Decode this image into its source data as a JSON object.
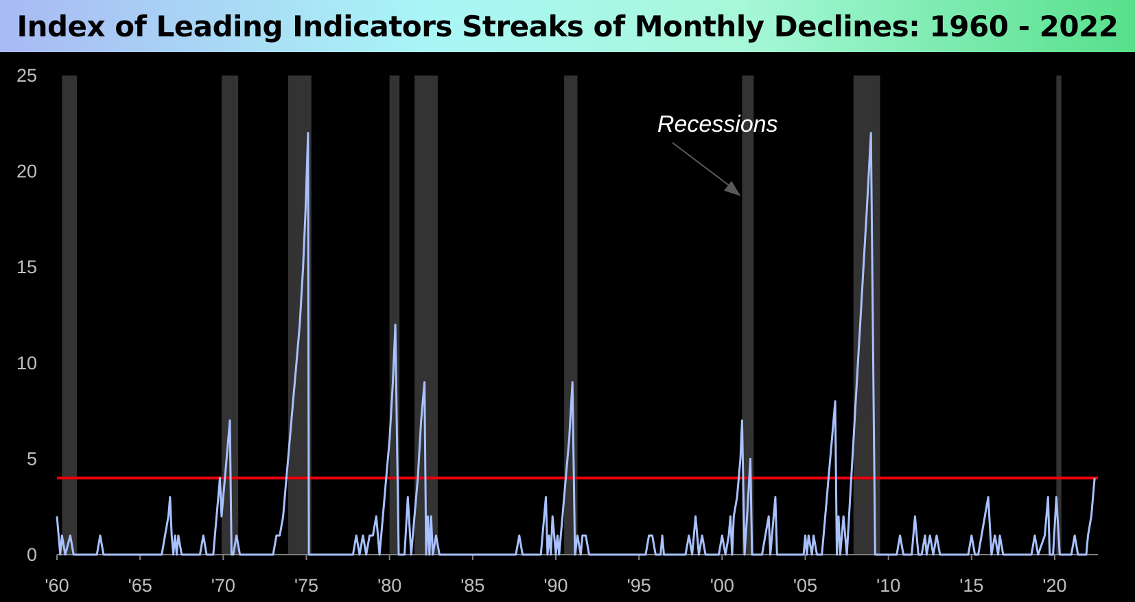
{
  "title": "Index of Leading Indicators Streaks of Monthly Declines: 1960 - 2022",
  "colors": {
    "background": "#000000",
    "series": "#a9c1ff",
    "threshold": "#e8000b",
    "recession_band": "#333333",
    "tick_text": "#bfbfbf"
  },
  "chart_data": {
    "type": "line",
    "title": "Index of Leading Indicators Streaks of Monthly Declines: 1960 - 2022",
    "xlabel": "",
    "ylabel": "",
    "xlim": [
      1960,
      2022.6
    ],
    "ylim": [
      0,
      25
    ],
    "x_ticks": [
      1960,
      1965,
      1970,
      1975,
      1980,
      1985,
      1990,
      1995,
      2000,
      2005,
      2010,
      2015,
      2020
    ],
    "x_tick_labels": [
      "'60",
      "'65",
      "'70",
      "'75",
      "'80",
      "'85",
      "'90",
      "'95",
      "'00",
      "'05",
      "'10",
      "'15",
      "'20"
    ],
    "y_ticks": [
      0,
      5,
      10,
      15,
      20,
      25
    ],
    "y_tick_labels": [
      "0",
      "5",
      "10",
      "15",
      "20",
      "25"
    ],
    "grid": false,
    "legend": "none",
    "threshold_line": 4,
    "recessions": [
      [
        1960.3,
        1961.2
      ],
      [
        1969.9,
        1970.9
      ],
      [
        1973.9,
        1975.3
      ],
      [
        1980.0,
        1980.6
      ],
      [
        1981.5,
        1982.9
      ],
      [
        1990.5,
        1991.3
      ],
      [
        2001.2,
        2001.9
      ],
      [
        2007.9,
        2009.5
      ],
      [
        2020.1,
        2020.4
      ]
    ],
    "annotation": {
      "text": "Recessions",
      "x": 1996.6,
      "y": 22.5,
      "arrow_to": [
        2001.2,
        18.5
      ]
    },
    "series": [
      {
        "points": [
          [
            1960.0,
            2
          ],
          [
            1960.2,
            0
          ],
          [
            1960.3,
            1
          ],
          [
            1960.5,
            0
          ],
          [
            1960.8,
            1
          ],
          [
            1961.0,
            0
          ],
          [
            1962.4,
            0
          ],
          [
            1962.6,
            1
          ],
          [
            1962.8,
            0
          ],
          [
            1966.3,
            0
          ],
          [
            1966.5,
            1
          ],
          [
            1966.7,
            2
          ],
          [
            1966.8,
            3
          ],
          [
            1966.9,
            1
          ],
          [
            1967.0,
            0
          ],
          [
            1967.1,
            1
          ],
          [
            1967.2,
            0
          ],
          [
            1967.3,
            1
          ],
          [
            1967.5,
            0
          ],
          [
            1968.6,
            0
          ],
          [
            1968.8,
            1
          ],
          [
            1969.0,
            0
          ],
          [
            1969.4,
            0
          ],
          [
            1969.5,
            1
          ],
          [
            1969.6,
            2
          ],
          [
            1969.7,
            3
          ],
          [
            1969.8,
            4
          ],
          [
            1969.9,
            2
          ],
          [
            1970.0,
            3
          ],
          [
            1970.1,
            4
          ],
          [
            1970.2,
            5
          ],
          [
            1970.3,
            6
          ],
          [
            1970.4,
            7
          ],
          [
            1970.5,
            0
          ],
          [
            1970.6,
            0
          ],
          [
            1970.8,
            1
          ],
          [
            1971.0,
            0
          ],
          [
            1973.0,
            0
          ],
          [
            1973.2,
            1
          ],
          [
            1973.4,
            1
          ],
          [
            1973.6,
            2
          ],
          [
            1973.8,
            4
          ],
          [
            1974.0,
            6
          ],
          [
            1974.2,
            8
          ],
          [
            1974.4,
            10
          ],
          [
            1974.6,
            12
          ],
          [
            1974.8,
            15
          ],
          [
            1974.95,
            18
          ],
          [
            1975.1,
            22
          ],
          [
            1975.15,
            0
          ],
          [
            1977.8,
            0
          ],
          [
            1978.0,
            1
          ],
          [
            1978.2,
            0
          ],
          [
            1978.4,
            1
          ],
          [
            1978.6,
            0
          ],
          [
            1978.8,
            1
          ],
          [
            1979.0,
            1
          ],
          [
            1979.2,
            2
          ],
          [
            1979.4,
            0
          ],
          [
            1979.6,
            2
          ],
          [
            1979.8,
            4
          ],
          [
            1980.0,
            6
          ],
          [
            1980.2,
            9
          ],
          [
            1980.35,
            12
          ],
          [
            1980.55,
            0
          ],
          [
            1980.9,
            0
          ],
          [
            1981.1,
            3
          ],
          [
            1981.3,
            0
          ],
          [
            1981.5,
            2
          ],
          [
            1981.7,
            4
          ],
          [
            1981.9,
            7
          ],
          [
            1982.1,
            9
          ],
          [
            1982.2,
            0
          ],
          [
            1982.3,
            2
          ],
          [
            1982.4,
            0
          ],
          [
            1982.5,
            2
          ],
          [
            1982.6,
            0
          ],
          [
            1982.8,
            1
          ],
          [
            1983.0,
            0
          ],
          [
            1987.6,
            0
          ],
          [
            1987.8,
            1
          ],
          [
            1988.0,
            0
          ],
          [
            1989.1,
            0
          ],
          [
            1989.2,
            1
          ],
          [
            1989.4,
            3
          ],
          [
            1989.5,
            0
          ],
          [
            1989.6,
            1
          ],
          [
            1989.7,
            0
          ],
          [
            1989.8,
            2
          ],
          [
            1990.0,
            0
          ],
          [
            1990.1,
            1
          ],
          [
            1990.2,
            0
          ],
          [
            1990.4,
            2
          ],
          [
            1990.6,
            4
          ],
          [
            1990.8,
            6
          ],
          [
            1991.0,
            9
          ],
          [
            1991.15,
            0
          ],
          [
            1991.3,
            1
          ],
          [
            1991.5,
            0
          ],
          [
            1991.6,
            1
          ],
          [
            1991.8,
            1
          ],
          [
            1992.0,
            0
          ],
          [
            1995.4,
            0
          ],
          [
            1995.6,
            1
          ],
          [
            1995.8,
            1
          ],
          [
            1996.0,
            0
          ],
          [
            1996.3,
            0
          ],
          [
            1996.4,
            1
          ],
          [
            1996.5,
            0
          ],
          [
            1997.8,
            0
          ],
          [
            1998.0,
            1
          ],
          [
            1998.2,
            0
          ],
          [
            1998.4,
            2
          ],
          [
            1998.6,
            0
          ],
          [
            1998.8,
            1
          ],
          [
            1999.0,
            0
          ],
          [
            1999.8,
            0
          ],
          [
            2000.0,
            1
          ],
          [
            2000.2,
            0
          ],
          [
            2000.4,
            1
          ],
          [
            2000.5,
            2
          ],
          [
            2000.6,
            0
          ],
          [
            2000.7,
            2
          ],
          [
            2000.9,
            3
          ],
          [
            2001.1,
            5
          ],
          [
            2001.2,
            7
          ],
          [
            2001.35,
            0
          ],
          [
            2001.5,
            2
          ],
          [
            2001.7,
            5
          ],
          [
            2001.8,
            0
          ],
          [
            2002.4,
            0
          ],
          [
            2002.6,
            1
          ],
          [
            2002.8,
            2
          ],
          [
            2002.9,
            0
          ],
          [
            2003.2,
            3
          ],
          [
            2003.3,
            0
          ],
          [
            2004.9,
            0
          ],
          [
            2005.0,
            1
          ],
          [
            2005.1,
            0
          ],
          [
            2005.2,
            1
          ],
          [
            2005.4,
            0
          ],
          [
            2005.5,
            1
          ],
          [
            2005.7,
            0
          ],
          [
            2006.0,
            0
          ],
          [
            2006.2,
            2
          ],
          [
            2006.4,
            4
          ],
          [
            2006.6,
            6
          ],
          [
            2006.8,
            8
          ],
          [
            2006.9,
            0
          ],
          [
            2007.0,
            2
          ],
          [
            2007.1,
            0
          ],
          [
            2007.3,
            2
          ],
          [
            2007.5,
            0
          ],
          [
            2007.7,
            3
          ],
          [
            2007.9,
            6
          ],
          [
            2008.1,
            9
          ],
          [
            2008.3,
            12
          ],
          [
            2008.5,
            15
          ],
          [
            2008.7,
            18
          ],
          [
            2008.95,
            22
          ],
          [
            2009.2,
            0
          ],
          [
            2010.5,
            0
          ],
          [
            2010.7,
            1
          ],
          [
            2010.9,
            0
          ],
          [
            2011.4,
            0
          ],
          [
            2011.6,
            2
          ],
          [
            2011.8,
            0
          ],
          [
            2012.0,
            0
          ],
          [
            2012.2,
            1
          ],
          [
            2012.3,
            0
          ],
          [
            2012.5,
            1
          ],
          [
            2012.7,
            0
          ],
          [
            2012.9,
            1
          ],
          [
            2013.1,
            0
          ],
          [
            2014.8,
            0
          ],
          [
            2015.0,
            1
          ],
          [
            2015.2,
            0
          ],
          [
            2015.4,
            0
          ],
          [
            2015.6,
            1
          ],
          [
            2015.8,
            2
          ],
          [
            2016.0,
            3
          ],
          [
            2016.2,
            0
          ],
          [
            2016.4,
            1
          ],
          [
            2016.6,
            0
          ],
          [
            2016.7,
            1
          ],
          [
            2016.9,
            0
          ],
          [
            2018.6,
            0
          ],
          [
            2018.8,
            1
          ],
          [
            2019.0,
            0
          ],
          [
            2019.4,
            1
          ],
          [
            2019.6,
            3
          ],
          [
            2019.7,
            0
          ],
          [
            2019.9,
            0
          ],
          [
            2020.1,
            3
          ],
          [
            2020.3,
            0
          ],
          [
            2021.0,
            0
          ],
          [
            2021.2,
            1
          ],
          [
            2021.4,
            0
          ],
          [
            2021.9,
            0
          ],
          [
            2022.0,
            1
          ],
          [
            2022.2,
            2
          ],
          [
            2022.4,
            4
          ]
        ]
      }
    ]
  }
}
